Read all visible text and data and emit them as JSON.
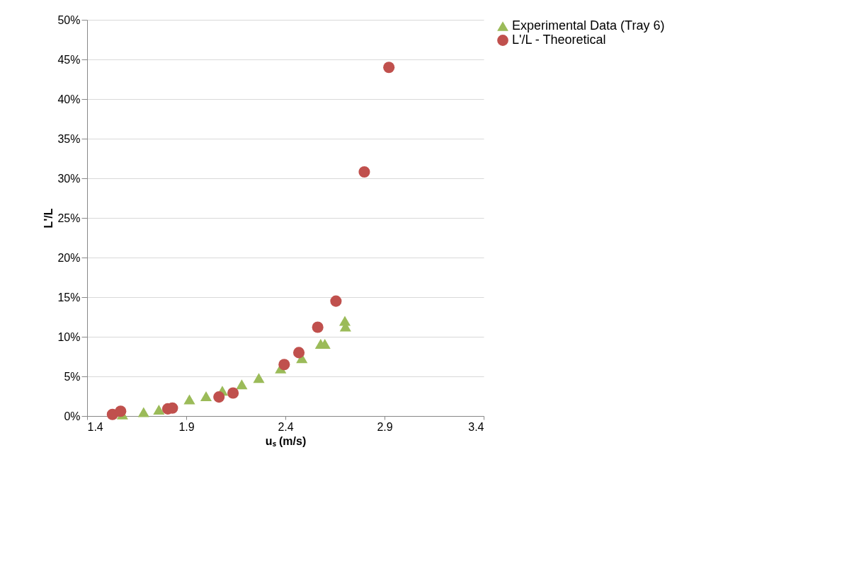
{
  "chart_data": {
    "type": "scatter",
    "xlabel": "uₛ (m/s)",
    "ylabel": "L'/L",
    "xlim": [
      1.4,
      3.4
    ],
    "xticks": [
      1.4,
      1.9,
      2.4,
      2.9,
      3.4
    ],
    "ylim": [
      0,
      50
    ],
    "yticks": [
      {
        "value": 0,
        "label": "0%"
      },
      {
        "value": 5,
        "label": "5%"
      },
      {
        "value": 10,
        "label": "10%"
      },
      {
        "value": 15,
        "label": "15%"
      },
      {
        "value": 20,
        "label": "20%"
      },
      {
        "value": 25,
        "label": "25%"
      },
      {
        "value": 30,
        "label": "30%"
      },
      {
        "value": 35,
        "label": "35%"
      },
      {
        "value": 40,
        "label": "40%"
      },
      {
        "value": 45,
        "label": "45%"
      },
      {
        "value": 50,
        "label": "50%"
      }
    ],
    "grid": "y",
    "legend": "right",
    "series": [
      {
        "name": "Experimental Data (Tray 6)",
        "color": "#9bbb59",
        "marker": "triangle",
        "x": [
          1.578,
          1.685,
          1.762,
          1.916,
          2.0,
          2.082,
          2.18,
          2.266,
          2.376,
          2.483,
          2.578,
          2.599,
          2.7,
          2.703
        ],
        "values": [
          0.2,
          0.5,
          0.8,
          2.1,
          2.5,
          3.2,
          4.0,
          4.8,
          6.0,
          7.3,
          9.1,
          9.1,
          12.0,
          11.3
        ]
      },
      {
        "name": "L'/L - Theoretical",
        "color": "#c0504d",
        "marker": "circle",
        "x": [
          1.528,
          1.569,
          1.807,
          1.83,
          2.065,
          2.136,
          2.394,
          2.468,
          2.563,
          2.655,
          2.798,
          2.922
        ],
        "values": [
          0.2,
          0.6,
          0.9,
          1.0,
          2.4,
          2.9,
          6.5,
          8.0,
          11.2,
          14.5,
          30.8,
          44.0
        ]
      }
    ]
  }
}
